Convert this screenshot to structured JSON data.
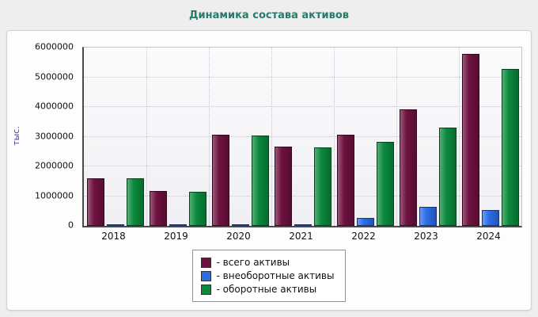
{
  "chart_data": {
    "type": "bar",
    "title": "Динамика состава активов",
    "ylabel": "тыс.",
    "xlabel": "",
    "categories": [
      "2018",
      "2019",
      "2020",
      "2021",
      "2022",
      "2023",
      "2024"
    ],
    "series": [
      {
        "name": "- всего активы",
        "color": "#6e1140",
        "border": "#35081f",
        "values": [
          1600000,
          1170000,
          3080000,
          2670000,
          3080000,
          3920000,
          5800000
        ]
      },
      {
        "name": "- внеоборотные активы",
        "color": "#2b6ce8",
        "border": "#16357e",
        "values": [
          40000,
          60000,
          60000,
          40000,
          270000,
          640000,
          530000
        ]
      },
      {
        "name": "- оборотные активы",
        "color": "#0a8a3c",
        "border": "#04441d",
        "values": [
          1600000,
          1140000,
          3050000,
          2640000,
          2820000,
          3300000,
          5280000
        ]
      }
    ],
    "ylim": [
      0,
      6000000
    ],
    "ytick_step": 1000000,
    "grid": true,
    "legend_position": "bottom"
  }
}
